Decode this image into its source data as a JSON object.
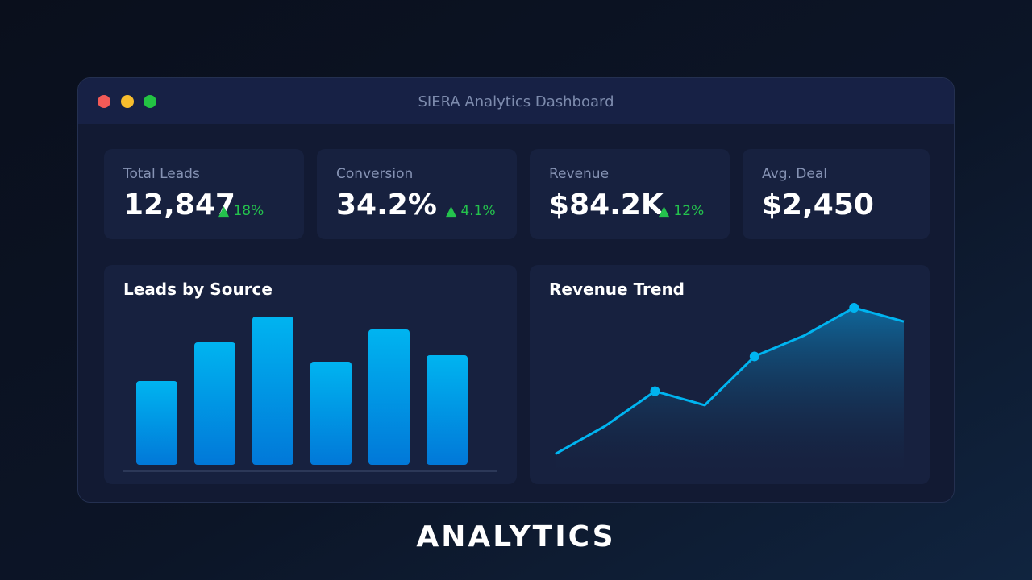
{
  "window": {
    "title": "SIERA Analytics Dashboard"
  },
  "stats": [
    {
      "label": "Total Leads",
      "value": "12,847",
      "delta": "▲ 18%"
    },
    {
      "label": "Conversion",
      "value": "34.2%",
      "delta": "▲ 4.1%"
    },
    {
      "label": "Revenue",
      "value": "$84.2K",
      "delta": "▲ 12%"
    },
    {
      "label": "Avg. Deal",
      "value": "$2,450"
    }
  ],
  "panels": {
    "leads_title": "Leads by Source",
    "revenue_title": "Revenue Trend"
  },
  "footer": {
    "title": "ANALYTICS"
  },
  "colors": {
    "accent": "#00b4f0",
    "positive": "#24c24d",
    "card": "#17213f"
  },
  "chart_data": [
    {
      "type": "bar",
      "title": "Leads by Source",
      "categories": [
        "",
        "",
        "",
        "",
        "",
        ""
      ],
      "values": [
        52,
        76,
        92,
        64,
        84,
        68
      ],
      "ylim": [
        0,
        100
      ],
      "grid": false
    },
    {
      "type": "area",
      "title": "Revenue Trend",
      "x": [
        0,
        1,
        2,
        3,
        4,
        5,
        6,
        7
      ],
      "values": [
        10,
        26,
        46,
        38,
        66,
        78,
        94,
        86
      ],
      "markers": [
        2,
        4,
        6
      ],
      "ylim": [
        0,
        100
      ],
      "grid": false
    }
  ]
}
